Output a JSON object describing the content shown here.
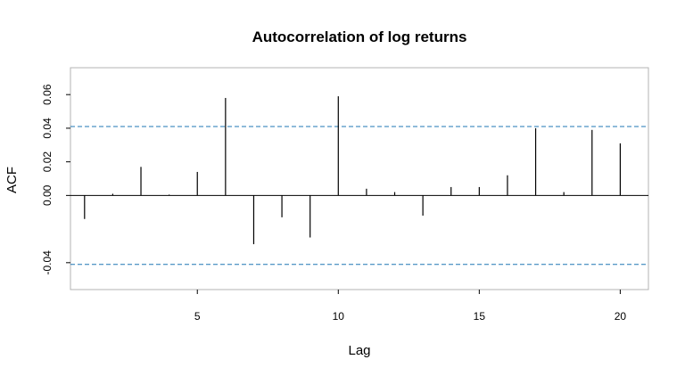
{
  "chart_data": {
    "type": "bar",
    "title": "Autocorrelation of log returns",
    "xlabel": "Lag",
    "ylabel": "ACF",
    "xlim": [
      0.5,
      21
    ],
    "ylim": [
      -0.056,
      0.076
    ],
    "x_ticks": [
      5,
      10,
      15,
      20
    ],
    "x_tick_labels": [
      "5",
      "10",
      "15",
      "20"
    ],
    "y_ticks": [
      -0.04,
      0.0,
      0.02,
      0.04,
      0.06
    ],
    "y_tick_labels": [
      "-0.04",
      "0.00",
      "0.02",
      "0.04",
      "0.06"
    ],
    "confidence_bounds": [
      0.041,
      -0.041
    ],
    "confidence_line_color": "#1f77b4",
    "grid": false,
    "x": [
      1,
      2,
      3,
      4,
      5,
      6,
      7,
      8,
      9,
      10,
      11,
      12,
      13,
      14,
      15,
      16,
      17,
      18,
      19,
      20
    ],
    "values": [
      -0.014,
      0.001,
      0.017,
      0.0005,
      0.014,
      0.058,
      -0.029,
      -0.013,
      -0.025,
      0.059,
      0.004,
      0.002,
      -0.012,
      0.005,
      0.005,
      0.012,
      0.04,
      0.002,
      0.039,
      0.031
    ]
  }
}
